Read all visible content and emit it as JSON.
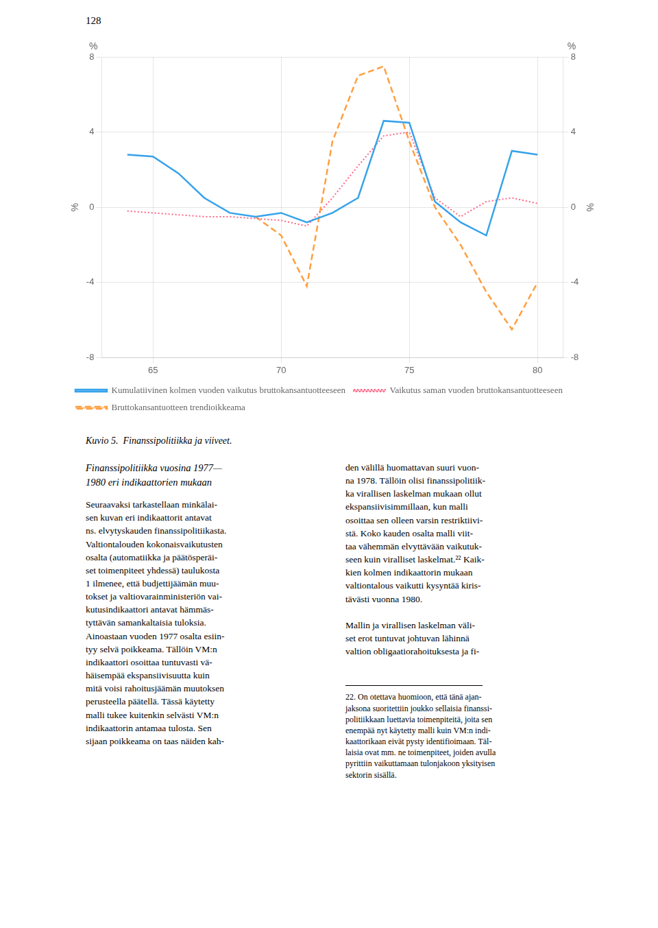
{
  "chart_data": {
    "type": "line",
    "y_label": "%",
    "y2_label": "%",
    "x": [
      63,
      64,
      65,
      66,
      67,
      68,
      69,
      70,
      71,
      72,
      73,
      74,
      75,
      76,
      77,
      78,
      79,
      80,
      81
    ],
    "xlim": [
      63,
      81
    ],
    "xticks": [
      65,
      70,
      75,
      80
    ],
    "ylim": [
      -8,
      8
    ],
    "yticks": [
      -8,
      -4,
      0,
      4,
      8
    ],
    "y2lim": [
      -8,
      8
    ],
    "y2ticks": [
      -8,
      -4,
      0,
      4,
      8
    ],
    "grid": true,
    "legend": "bottom",
    "series": [
      {
        "name": "Kumulatiivinen kolmen vuoden vaikutus bruttokansantuotteeseen",
        "line_style": "solid",
        "values": [
          null,
          2.8,
          2.7,
          1.8,
          0.5,
          -0.3,
          -0.5,
          -0.3,
          -0.8,
          -0.3,
          0.5,
          4.6,
          4.5,
          0.3,
          -0.8,
          -1.5,
          3.0,
          2.8,
          null
        ]
      },
      {
        "name": "Vaikutus saman vuoden bruttokansantuotteeseen",
        "line_style": "dotted",
        "values": [
          null,
          -0.2,
          -0.3,
          -0.4,
          -0.5,
          -0.5,
          -0.6,
          -0.7,
          -1.0,
          0.5,
          2.2,
          3.8,
          4.0,
          0.5,
          -0.5,
          0.3,
          0.5,
          0.2,
          null
        ]
      },
      {
        "name": "Bruttokansantuotteen trendioikkeama",
        "line_style": "dashed",
        "values": [
          null,
          null,
          null,
          null,
          null,
          null,
          -0.5,
          -1.5,
          -4.2,
          3.5,
          7.0,
          7.5,
          3.5,
          0.0,
          -2.0,
          -4.5,
          -6.5,
          -4.0,
          null
        ]
      }
    ],
    "annotations": [
      "128",
      "%",
      "%",
      "Kuvio 5.  Finanssipolitiikka ja viiveet.",
      "Finanssipolitiikka vuosina 1977—\n1980 eri indikaattorien mukaan",
      "Seuraavaksi tarkastellaan minkälai-\nsen kuvan eri indikaattorit antavat\nns. elvytyskauden finanssipolitiikasta.\nValtiontalouden kokonaisvaikutusten\nosalta (automatiikka ja päätösperäi-\nset toimenpiteet yhdessä) taulukosta\n1 ilmenee, että budjettijäämän muu-\ntokset ja valtiovarainministeriön vai-\nkutusindikaattori antavat hämmäs-\ntyttävän samankaltaisia tuloksia.\nAinoastaan vuoden 1977 osalta esiin-\ntyy selvä poikkeama. Tällöin VM:n\nindikaattori osoittaa tuntuvasti vä-\nhäisempää ekspansiivisuutta kuin\nmitä voisi rahoitusjäämän muutoksen\nperusteella päätellä. Tässä käytetty\nmalli tukee kuitenkin selvästi VM:n\nindikaattorin antamaa tulosta. Sen\nsijaan poikkeama on taas näiden kah-",
      "den välillä huomattavan suuri vuon-\nna 1978. Tällöin olisi finanssipolitiik-\nka virallisen laskelman mukaan ollut\nekspansiivisimmillaan, kun malli\nosoittaa sen olleen varsin restriktiivi-\nstä. Koko kauden osalta malli viit-\ntaa vähemmän elvyttävään vaikutuk-\nseen kuin viralliset laskelmat.²² Kaik-\nkien kolmen indikaattorin mukaan\nvaltiontalous vaikutti kysyntää kiris-\ntävästi vuonna 1980.\n\nMallin ja virallisen laskelman väli-\nset erot tuntuvat johtuvan lähinnä\nvaltion obligaatiorahoituksesta ja fi-",
      "22. On otettava huomioon, että tänä ajan-\njaksona suoritettiin joukko sellaisia finanssi-\npolitiikkaan luettavia toimenpiteitä, joita sen\nenempää nyt käytetty malli kuin VM:n indi-\nkaattorikaan eivät pysty identifioimaan. Täl-\nlaisia ovat mm. ne toimenpiteet, joiden avulla\npyrittiin vaikuttamaan tulonjakoon yksityisen\nsektorin sisällä."
    ]
  }
}
